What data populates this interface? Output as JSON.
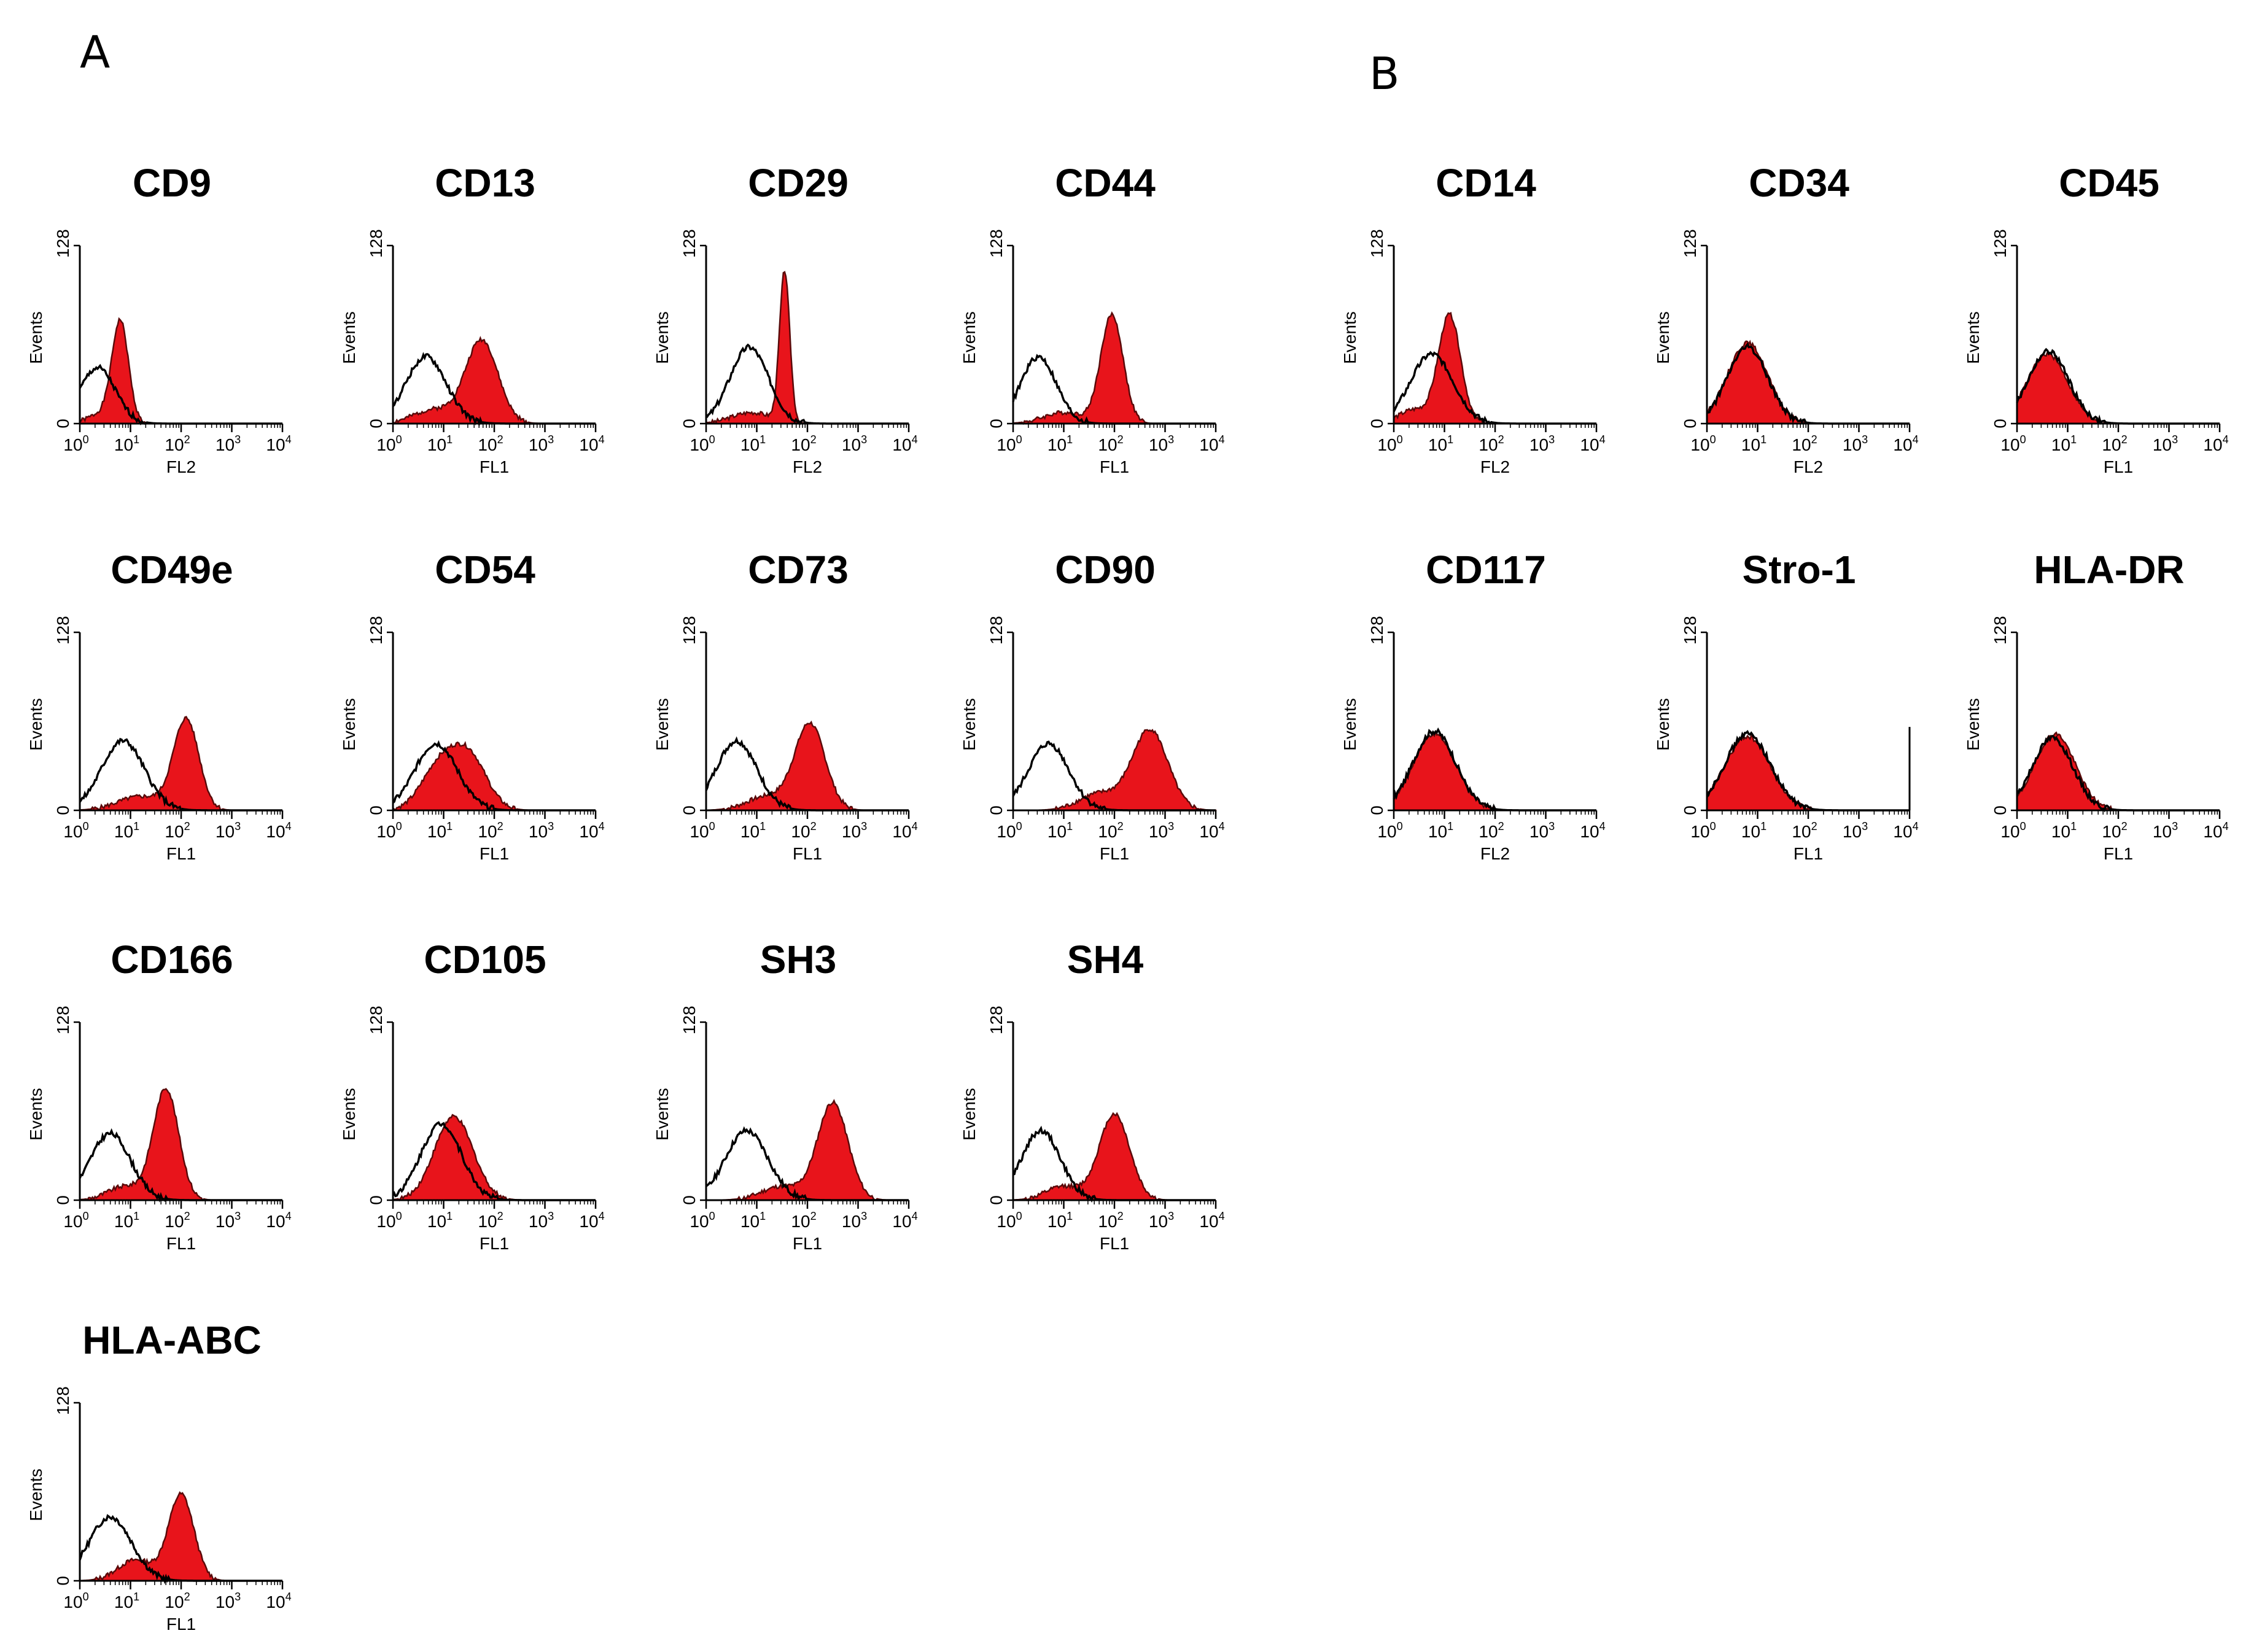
{
  "figure": {
    "panels": [
      {
        "id": "A",
        "label": "A"
      },
      {
        "id": "B",
        "label": "B"
      }
    ]
  },
  "chart_data": [
    {
      "type": "histogram",
      "panel": "A",
      "title": "CD9",
      "xlabel": "FL2",
      "ylabel": "Events",
      "ylim": [
        0,
        128
      ],
      "yticks": [
        "0",
        "128"
      ],
      "xticks": [
        0,
        1,
        2,
        3,
        4
      ],
      "xlim_log10": [
        0,
        4
      ],
      "stained": [
        {
          "center_log": 0.8,
          "width": 0.16,
          "height": 70
        },
        {
          "center_log": 0.5,
          "width": 0.3,
          "height": 8
        }
      ],
      "isotype": [
        {
          "center_log": 0.35,
          "width": 0.35,
          "height": 40
        }
      ]
    },
    {
      "type": "histogram",
      "panel": "A",
      "title": "CD13",
      "xlabel": "FL1",
      "ylabel": "Events",
      "ylim": [
        0,
        128
      ],
      "yticks": [
        "0",
        "128"
      ],
      "xticks": [
        0,
        1,
        2,
        3,
        4
      ],
      "xlim_log10": [
        0,
        4
      ],
      "stained": [
        {
          "center_log": 1.75,
          "width": 0.32,
          "height": 60
        },
        {
          "center_log": 0.8,
          "width": 0.4,
          "height": 10
        }
      ],
      "isotype": [
        {
          "center_log": 0.65,
          "width": 0.4,
          "height": 48
        }
      ]
    },
    {
      "type": "histogram",
      "panel": "A",
      "title": "CD29",
      "xlabel": "FL2",
      "ylabel": "Events",
      "ylim": [
        0,
        128
      ],
      "yticks": [
        "0",
        "128"
      ],
      "xticks": [
        0,
        1,
        2,
        3,
        4
      ],
      "xlim_log10": [
        0,
        4
      ],
      "stained": [
        {
          "center_log": 1.55,
          "width": 0.1,
          "height": 108
        },
        {
          "center_log": 0.9,
          "width": 0.4,
          "height": 8
        }
      ],
      "isotype": [
        {
          "center_log": 0.85,
          "width": 0.38,
          "height": 55
        }
      ]
    },
    {
      "type": "histogram",
      "panel": "A",
      "title": "CD44",
      "xlabel": "FL1",
      "ylabel": "Events",
      "ylim": [
        0,
        128
      ],
      "yticks": [
        "0",
        "128"
      ],
      "xticks": [
        0,
        1,
        2,
        3,
        4
      ],
      "xlim_log10": [
        0,
        4
      ],
      "stained": [
        {
          "center_log": 1.95,
          "width": 0.22,
          "height": 78
        },
        {
          "center_log": 1.0,
          "width": 0.4,
          "height": 8
        }
      ],
      "isotype": [
        {
          "center_log": 0.5,
          "width": 0.35,
          "height": 48
        }
      ]
    },
    {
      "type": "histogram",
      "panel": "A",
      "title": "CD49e",
      "xlabel": "FL1",
      "ylabel": "Events",
      "ylim": [
        0,
        128
      ],
      "yticks": [
        "0",
        "128"
      ],
      "xticks": [
        0,
        1,
        2,
        3,
        4
      ],
      "xlim_log10": [
        0,
        4
      ],
      "stained": [
        {
          "center_log": 2.1,
          "width": 0.25,
          "height": 65
        },
        {
          "center_log": 1.2,
          "width": 0.45,
          "height": 10
        }
      ],
      "isotype": [
        {
          "center_log": 0.85,
          "width": 0.42,
          "height": 50
        }
      ]
    },
    {
      "type": "histogram",
      "panel": "A",
      "title": "CD54",
      "xlabel": "FL1",
      "ylabel": "Events",
      "ylim": [
        0,
        128
      ],
      "yticks": [
        "0",
        "128"
      ],
      "xticks": [
        0,
        1,
        2,
        3,
        4
      ],
      "xlim_log10": [
        0,
        4
      ],
      "stained": [
        {
          "center_log": 1.5,
          "width": 0.35,
          "height": 38
        },
        {
          "center_log": 0.9,
          "width": 0.35,
          "height": 30
        }
      ],
      "isotype": [
        {
          "center_log": 0.85,
          "width": 0.42,
          "height": 48
        }
      ]
    },
    {
      "type": "histogram",
      "panel": "A",
      "title": "CD73",
      "xlabel": "FL1",
      "ylabel": "Events",
      "ylim": [
        0,
        128
      ],
      "yticks": [
        "0",
        "128"
      ],
      "xticks": [
        0,
        1,
        2,
        3,
        4
      ],
      "xlim_log10": [
        0,
        4
      ],
      "stained": [
        {
          "center_log": 2.05,
          "width": 0.3,
          "height": 62
        },
        {
          "center_log": 1.2,
          "width": 0.4,
          "height": 10
        }
      ],
      "isotype": [
        {
          "center_log": 0.6,
          "width": 0.4,
          "height": 50
        }
      ]
    },
    {
      "type": "histogram",
      "panel": "A",
      "title": "CD90",
      "xlabel": "FL1",
      "ylabel": "Events",
      "ylim": [
        0,
        128
      ],
      "yticks": [
        "0",
        "128"
      ],
      "xticks": [
        0,
        1,
        2,
        3,
        4
      ],
      "xlim_log10": [
        0,
        4
      ],
      "stained": [
        {
          "center_log": 2.7,
          "width": 0.35,
          "height": 58
        },
        {
          "center_log": 1.7,
          "width": 0.4,
          "height": 12
        }
      ],
      "isotype": [
        {
          "center_log": 0.7,
          "width": 0.4,
          "height": 48
        }
      ]
    },
    {
      "type": "histogram",
      "panel": "A",
      "title": "CD166",
      "xlabel": "FL1",
      "ylabel": "Events",
      "ylim": [
        0,
        128
      ],
      "yticks": [
        "0",
        "128"
      ],
      "xticks": [
        0,
        1,
        2,
        3,
        4
      ],
      "xlim_log10": [
        0,
        4
      ],
      "stained": [
        {
          "center_log": 1.7,
          "width": 0.25,
          "height": 80
        },
        {
          "center_log": 0.9,
          "width": 0.35,
          "height": 10
        }
      ],
      "isotype": [
        {
          "center_log": 0.6,
          "width": 0.4,
          "height": 48
        }
      ]
    },
    {
      "type": "histogram",
      "panel": "A",
      "title": "CD105",
      "xlabel": "FL1",
      "ylabel": "Events",
      "ylim": [
        0,
        128
      ],
      "yticks": [
        "0",
        "128"
      ],
      "xticks": [
        0,
        1,
        2,
        3,
        4
      ],
      "xlim_log10": [
        0,
        4
      ],
      "stained": [
        {
          "center_log": 1.2,
          "width": 0.38,
          "height": 60
        }
      ],
      "isotype": [
        {
          "center_log": 0.95,
          "width": 0.4,
          "height": 55
        }
      ]
    },
    {
      "type": "histogram",
      "panel": "A",
      "title": "SH3",
      "xlabel": "FL1",
      "ylabel": "Events",
      "ylim": [
        0,
        128
      ],
      "yticks": [
        "0",
        "128"
      ],
      "xticks": [
        0,
        1,
        2,
        3,
        4
      ],
      "xlim_log10": [
        0,
        4
      ],
      "stained": [
        {
          "center_log": 2.5,
          "width": 0.3,
          "height": 70
        },
        {
          "center_log": 1.5,
          "width": 0.4,
          "height": 10
        }
      ],
      "isotype": [
        {
          "center_log": 0.8,
          "width": 0.42,
          "height": 50
        }
      ]
    },
    {
      "type": "histogram",
      "panel": "A",
      "title": "SH4",
      "xlabel": "FL1",
      "ylabel": "Events",
      "ylim": [
        0,
        128
      ],
      "yticks": [
        "0",
        "128"
      ],
      "xticks": [
        0,
        1,
        2,
        3,
        4
      ],
      "xlim_log10": [
        0,
        4
      ],
      "stained": [
        {
          "center_log": 2.0,
          "width": 0.3,
          "height": 62
        },
        {
          "center_log": 1.0,
          "width": 0.35,
          "height": 10
        }
      ],
      "isotype": [
        {
          "center_log": 0.55,
          "width": 0.38,
          "height": 50
        }
      ]
    },
    {
      "type": "histogram",
      "panel": "A",
      "title": "HLA-ABC",
      "xlabel": "FL1",
      "ylabel": "Events",
      "ylim": [
        0,
        128
      ],
      "yticks": [
        "0",
        "128"
      ],
      "xticks": [
        0,
        1,
        2,
        3,
        4
      ],
      "xlim_log10": [
        0,
        4
      ],
      "stained": [
        {
          "center_log": 2.0,
          "width": 0.25,
          "height": 62
        },
        {
          "center_log": 1.1,
          "width": 0.35,
          "height": 15
        }
      ],
      "isotype": [
        {
          "center_log": 0.6,
          "width": 0.42,
          "height": 46
        }
      ]
    },
    {
      "type": "histogram",
      "panel": "B",
      "title": "CD14",
      "xlabel": "FL2",
      "ylabel": "Events",
      "ylim": [
        0,
        128
      ],
      "yticks": [
        "0",
        "128"
      ],
      "xticks": [
        0,
        1,
        2,
        3,
        4
      ],
      "xlim_log10": [
        0,
        4
      ],
      "stained": [
        {
          "center_log": 1.1,
          "width": 0.22,
          "height": 78
        },
        {
          "center_log": 0.4,
          "width": 0.3,
          "height": 10
        }
      ],
      "isotype": [
        {
          "center_log": 0.75,
          "width": 0.42,
          "height": 50
        }
      ]
    },
    {
      "type": "histogram",
      "panel": "B",
      "title": "CD34",
      "xlabel": "FL2",
      "ylabel": "Events",
      "ylim": [
        0,
        128
      ],
      "yticks": [
        "0",
        "128"
      ],
      "xticks": [
        0,
        1,
        2,
        3,
        4
      ],
      "xlim_log10": [
        0,
        4
      ],
      "stained": [
        {
          "center_log": 0.8,
          "width": 0.4,
          "height": 58
        }
      ],
      "isotype": [
        {
          "center_log": 0.8,
          "width": 0.4,
          "height": 55
        }
      ]
    },
    {
      "type": "histogram",
      "panel": "B",
      "title": "CD45",
      "xlabel": "FL1",
      "ylabel": "Events",
      "ylim": [
        0,
        128
      ],
      "yticks": [
        "0",
        "128"
      ],
      "xticks": [
        0,
        1,
        2,
        3,
        4
      ],
      "xlim_log10": [
        0,
        4
      ],
      "stained": [
        {
          "center_log": 0.6,
          "width": 0.4,
          "height": 50
        }
      ],
      "isotype": [
        {
          "center_log": 0.62,
          "width": 0.4,
          "height": 52
        }
      ]
    },
    {
      "type": "histogram",
      "panel": "B",
      "title": "CD117",
      "xlabel": "FL2",
      "ylabel": "Events",
      "ylim": [
        0,
        128
      ],
      "yticks": [
        "0",
        "128"
      ],
      "xticks": [
        0,
        1,
        2,
        3,
        4
      ],
      "xlim_log10": [
        0,
        4
      ],
      "stained": [
        {
          "center_log": 0.8,
          "width": 0.42,
          "height": 55
        }
      ],
      "isotype": [
        {
          "center_log": 0.8,
          "width": 0.42,
          "height": 57
        }
      ]
    },
    {
      "type": "histogram",
      "panel": "B",
      "title": "Stro-1",
      "xlabel": "FL1",
      "ylabel": "Events",
      "ylim": [
        0,
        128
      ],
      "yticks": [
        "0",
        "128"
      ],
      "xticks": [
        0,
        1,
        2,
        3,
        4
      ],
      "xlim_log10": [
        0,
        4
      ],
      "stained": [
        {
          "center_log": 0.8,
          "width": 0.45,
          "height": 53
        }
      ],
      "isotype": [
        {
          "center_log": 0.8,
          "width": 0.45,
          "height": 55
        }
      ],
      "edge_spike": {
        "at_log": 4,
        "height": 60
      }
    },
    {
      "type": "histogram",
      "panel": "B",
      "title": "HLA-DR",
      "xlabel": "FL1",
      "ylabel": "Events",
      "ylim": [
        0,
        128
      ],
      "yticks": [
        "0",
        "128"
      ],
      "xticks": [
        0,
        1,
        2,
        3,
        4
      ],
      "xlim_log10": [
        0,
        4
      ],
      "stained": [
        {
          "center_log": 0.75,
          "width": 0.4,
          "height": 55
        }
      ],
      "isotype": [
        {
          "center_log": 0.7,
          "width": 0.4,
          "height": 52
        }
      ]
    }
  ]
}
